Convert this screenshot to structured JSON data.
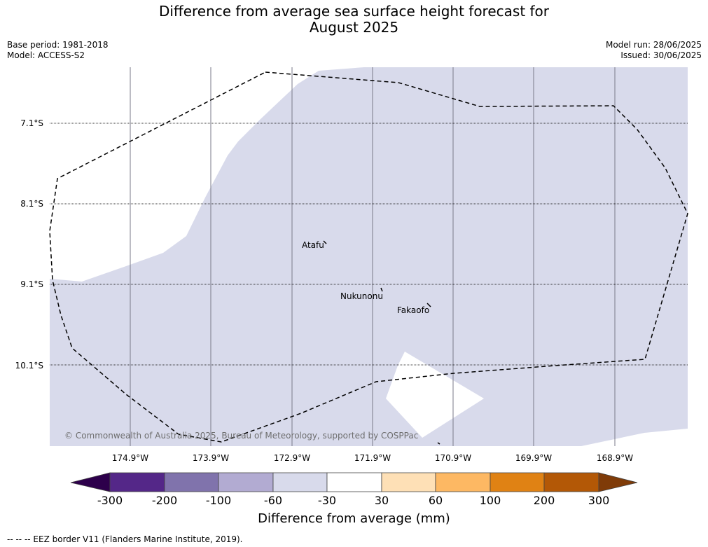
{
  "title_line1": "Difference from average sea surface height forecast for",
  "title_line2": "August 2025",
  "base_period": "Base period: 1981-2018",
  "model": "Model: ACCESS-S2",
  "model_run": "Model run: 28/06/2025",
  "issued": "Issued: 30/06/2025",
  "lat_labels": [
    "7.1°S",
    "8.1°S",
    "9.1°S",
    "10.1°S"
  ],
  "lon_labels": [
    "174.9°W",
    "173.9°W",
    "172.9°W",
    "171.9°W",
    "170.9°W",
    "169.9°W",
    "168.9°W"
  ],
  "places": {
    "atafu": "Atafu",
    "nukunonu": "Nukunonu",
    "fakaofo": "Fakaofo"
  },
  "copyright": "© Commonwealth of Australia 2025, Bureau of Meteorology, supported by COSPPac",
  "colorbar": {
    "ticks": [
      "-300",
      "-200",
      "-100",
      "-60",
      "-30",
      "30",
      "60",
      "100",
      "200",
      "300"
    ],
    "colors": [
      "#2d004b",
      "#542788",
      "#8073ac",
      "#b2abd2",
      "#d8daeb",
      "#ffffff",
      "#fee0b6",
      "#fdb863",
      "#e08214",
      "#b35806",
      "#7f3b08"
    ],
    "title": "Difference from average (mm)"
  },
  "footer": "--  --  -- EEZ border V11 (Flanders Marine Institute, 2019)."
}
